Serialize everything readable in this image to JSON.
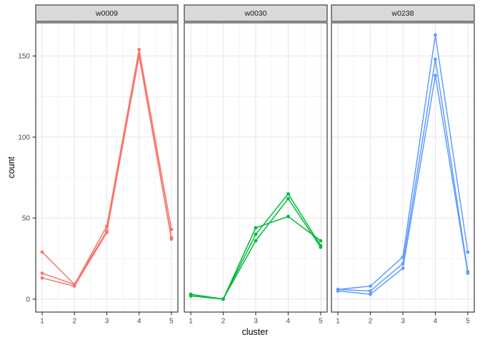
{
  "chart_data": {
    "type": "line",
    "title": "",
    "xlabel": "cluster",
    "ylabel": "count",
    "x": [
      1,
      2,
      3,
      4,
      5
    ],
    "x_tick_labels": [
      "1",
      "2",
      "3",
      "4",
      "5"
    ],
    "y_ticks": [
      0,
      50,
      100,
      150
    ],
    "y_minor": [
      25,
      75,
      125
    ],
    "x_minor": [
      1.5,
      2.5,
      3.5,
      4.5
    ],
    "xlim": [
      0.8,
      5.2
    ],
    "ylim": [
      -8,
      170.5
    ],
    "grid": true,
    "legend": "none",
    "facets": [
      {
        "label": "w0009",
        "color": "#F8766D",
        "series": [
          {
            "values": [
              29,
              9,
              45,
              154,
              43
            ]
          },
          {
            "values": [
              16,
              9,
              42,
              151,
              38
            ]
          },
          {
            "values": [
              13,
              8,
              41,
              150,
              37
            ]
          }
        ]
      },
      {
        "label": "w0030",
        "color": "#00BA38",
        "series": [
          {
            "values": [
              3,
              0,
              44,
              51,
              36
            ]
          },
          {
            "values": [
              2,
              0,
              40,
              65,
              33
            ]
          },
          {
            "values": [
              2,
              0,
              36,
              62,
              32
            ]
          }
        ]
      },
      {
        "label": "w0238",
        "color": "#619CFF",
        "series": [
          {
            "values": [
              6,
              8,
              26,
              163,
              29
            ]
          },
          {
            "values": [
              6,
              5,
              22,
              148,
              17
            ]
          },
          {
            "values": [
              5,
              3,
              19,
              138,
              16
            ]
          }
        ]
      }
    ]
  },
  "style": {
    "background": "#FFFFFF",
    "panel_fill": "#FFFFFF",
    "panel_border": "#3B3B3B",
    "strip_fill": "#D9D9D9",
    "strip_border": "#3B3B3B",
    "strip_text_color": "#1A1A1A",
    "grid_major": "#E7E7E7",
    "grid_minor": "#F3F3F3",
    "tick_color": "#333333",
    "tick_label_color": "#4D4D4D",
    "axis_title_color": "#000000"
  }
}
